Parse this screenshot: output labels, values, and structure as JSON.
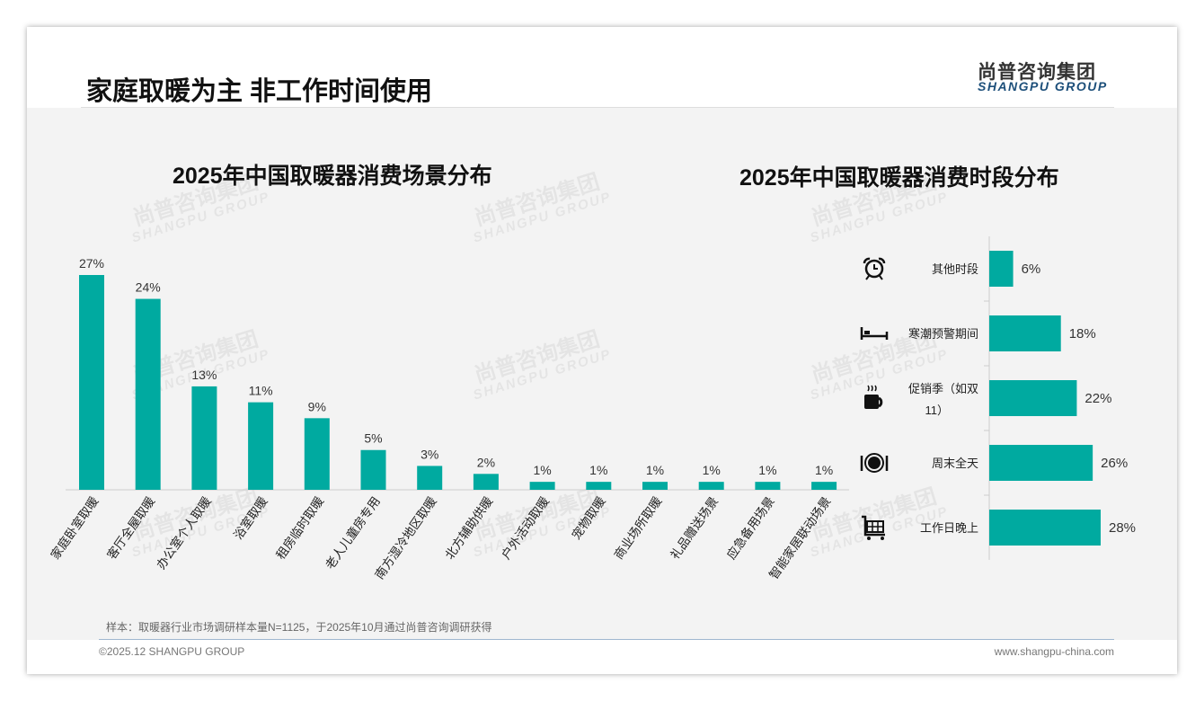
{
  "header": {
    "title": "家庭取暖为主 非工作时间使用",
    "logo_cn": "尚普咨询集团",
    "logo_en": "SHANGPU GROUP"
  },
  "watermark": {
    "cn": "尚普咨询集团",
    "en": "SHANGPU GROUP"
  },
  "footer": {
    "note": "样本：取暖器行业市场调研样本量N=1125，于2025年10月通过尚普咨询调研获得",
    "copyright": "©2025.12 SHANGPU GROUP",
    "url": "www.shangpu-china.com"
  },
  "colors": {
    "bar": "#00aaa0"
  },
  "chart_data": [
    {
      "type": "bar",
      "title": "2025年中国取暖器消费场景分布",
      "categories": [
        "家庭卧室取暖",
        "客厅全屋取暖",
        "办公室个人取暖",
        "浴室取暖",
        "租房临时取暖",
        "老人儿童房专用",
        "南方湿冷地区取暖",
        "北方辅助供暖",
        "户外活动取暖",
        "宠物取暖",
        "商业场所取暖",
        "礼品赠送场景",
        "应急备用场景",
        "智能家居联动场景"
      ],
      "values": [
        27,
        24,
        13,
        11,
        9,
        5,
        3,
        2,
        1,
        1,
        1,
        1,
        1,
        1
      ],
      "labels": [
        "27%",
        "24%",
        "13%",
        "11%",
        "9%",
        "5%",
        "3%",
        "2%",
        "1%",
        "1%",
        "1%",
        "1%",
        "1%",
        "1%"
      ],
      "unit": "%",
      "ylim": [
        0,
        30
      ]
    },
    {
      "type": "bar",
      "orientation": "horizontal",
      "title": "2025年中国取暖器消费时段分布",
      "categories": [
        "其他时段",
        "寒潮预警期间",
        "促销季（如双11）",
        "周末全天",
        "工作日晚上"
      ],
      "category_lines": [
        [
          "其他时段"
        ],
        [
          "寒潮预警期间"
        ],
        [
          "促销季（如双",
          "11）"
        ],
        [
          "周末全天"
        ],
        [
          "工作日晚上"
        ]
      ],
      "icons": [
        "alarm-clock-icon",
        "bed-icon",
        "coffee-cup-icon",
        "plate-cutlery-icon",
        "shopping-cart-icon"
      ],
      "values": [
        6,
        18,
        22,
        26,
        28
      ],
      "labels": [
        "6%",
        "18%",
        "22%",
        "26%",
        "28%"
      ],
      "unit": "%",
      "xlim": [
        0,
        30
      ]
    }
  ]
}
